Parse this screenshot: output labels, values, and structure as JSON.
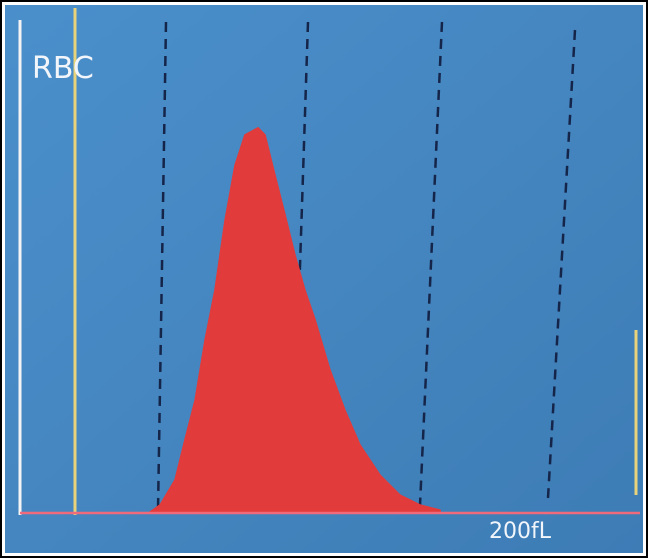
{
  "chart_data": {
    "type": "area",
    "title": "RBC",
    "x_label": "200fL",
    "x": [
      52.4,
      56.5,
      62.5,
      66.5,
      70.6,
      74.6,
      78.6,
      82.7,
      86.7,
      90.7,
      96.0,
      98.8,
      102.8,
      106.9,
      110.9,
      114.9,
      119.0,
      125.0,
      131.0,
      137.1,
      145.2,
      153.2,
      161.3,
      169.4
    ],
    "values": [
      0,
      1.5,
      6.8,
      15.3,
      23.7,
      36.4,
      47.0,
      61.9,
      73.5,
      79.9,
      81.4,
      79.9,
      71.4,
      62.9,
      54.4,
      47.0,
      40.7,
      30.1,
      21.6,
      14.2,
      7.8,
      3.6,
      1.5,
      0.4
    ],
    "color": "#e23b3b",
    "xlim": [
      0,
      250
    ],
    "ylim": [
      0,
      100
    ]
  }
}
